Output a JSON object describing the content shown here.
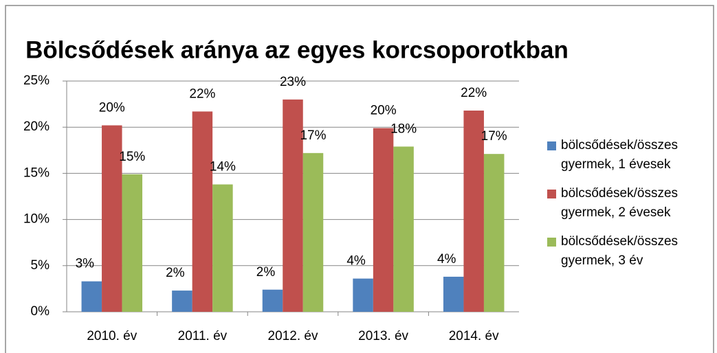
{
  "chart_data": {
    "type": "bar",
    "title": "Bölcsődések aránya az egyes korcsoporotkban",
    "categories": [
      "2010. év",
      "2011. év",
      "2012. év",
      "2013. év",
      "2014. év"
    ],
    "series": [
      {
        "name": "bölcsődések/összes gyermek,  1 évesek",
        "color": "#4f81bd",
        "values": [
          3.3,
          2.3,
          2.4,
          3.6,
          3.8
        ],
        "value_labels": [
          "3%",
          "2%",
          "2%",
          "4%",
          "4%"
        ]
      },
      {
        "name": "bölcsődések/összes gyermek,  2 évesek",
        "color": "#c0504d",
        "values": [
          20.2,
          21.7,
          23.0,
          19.9,
          21.8
        ],
        "value_labels": [
          "20%",
          "22%",
          "23%",
          "20%",
          "22%"
        ]
      },
      {
        "name": "bölcsődések/összes gyermek,  3 év",
        "color": "#9bbb59",
        "values": [
          14.9,
          13.8,
          17.2,
          17.9,
          17.1
        ],
        "value_labels": [
          "15%",
          "14%",
          "17%",
          "18%",
          "17%"
        ]
      }
    ],
    "ylim": [
      0,
      25
    ],
    "yticks": [
      {
        "value": 0,
        "label": "0%"
      },
      {
        "value": 5,
        "label": "5%"
      },
      {
        "value": 10,
        "label": "10%"
      },
      {
        "value": 15,
        "label": "15%"
      },
      {
        "value": 20,
        "label": "20%"
      },
      {
        "value": 25,
        "label": "25%"
      }
    ],
    "grid": true,
    "legend": "right"
  }
}
